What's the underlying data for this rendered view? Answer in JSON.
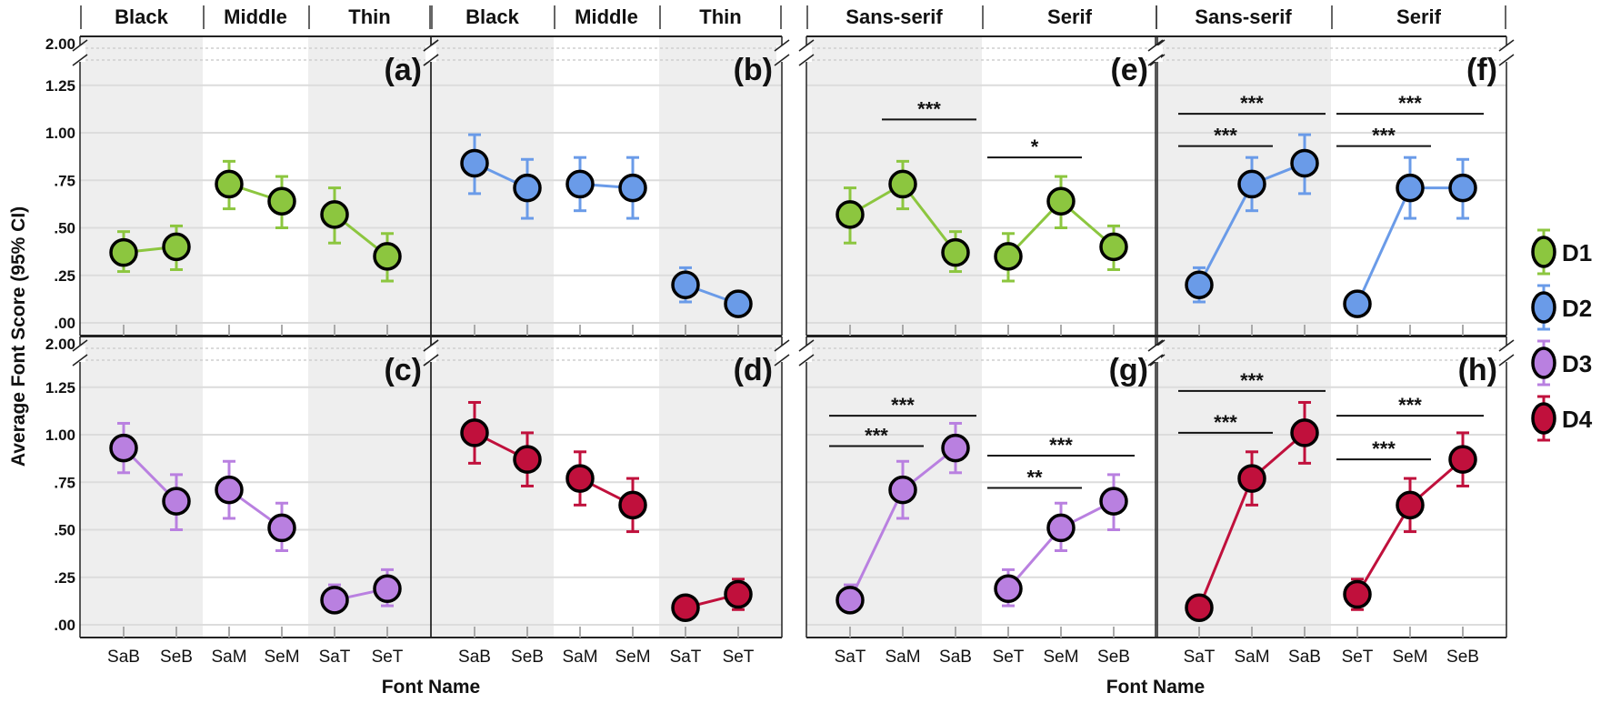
{
  "chart_data": {
    "type": "line",
    "ylabel": "Average Font Score (95% CI)",
    "xlabel": "Font Name",
    "ylim": [
      0,
      2.0
    ],
    "y_break": [
      1.25,
      2.0
    ],
    "yticks": [
      ".00",
      ".25",
      ".50",
      ".75",
      "1.00",
      "1.25",
      "2.00"
    ],
    "ytick_values": [
      0,
      0.25,
      0.5,
      0.75,
      1.0,
      1.25,
      2.0
    ],
    "grid": true,
    "legend_position": "right",
    "legend": [
      {
        "name": "D1",
        "color": "#8cc63f"
      },
      {
        "name": "D2",
        "color": "#6a9be8"
      },
      {
        "name": "D3",
        "color": "#b980e0"
      },
      {
        "name": "D4",
        "color": "#c0103c"
      }
    ],
    "panels": [
      {
        "label": "(a)",
        "series": "D1",
        "row": 0,
        "col": 0,
        "groups": [
          {
            "name": "Black",
            "n": 2,
            "shaded": true
          },
          {
            "name": "Middle",
            "n": 2,
            "shaded": false
          },
          {
            "name": "Thin",
            "n": 2,
            "shaded": true
          }
        ],
        "categories": [
          "SaB",
          "SeB",
          "SaM",
          "SeM",
          "SaT",
          "SeT"
        ],
        "values": [
          0.37,
          0.4,
          0.73,
          0.64,
          0.57,
          0.35
        ],
        "ci_low": [
          0.27,
          0.28,
          0.6,
          0.5,
          0.42,
          0.22
        ],
        "ci_high": [
          0.48,
          0.51,
          0.85,
          0.77,
          0.71,
          0.47
        ],
        "significance": []
      },
      {
        "label": "(b)",
        "series": "D2",
        "row": 0,
        "col": 1,
        "groups": [
          {
            "name": "Black",
            "n": 2,
            "shaded": true
          },
          {
            "name": "Middle",
            "n": 2,
            "shaded": false
          },
          {
            "name": "Thin",
            "n": 2,
            "shaded": true
          }
        ],
        "categories": [
          "SaB",
          "SeB",
          "SaM",
          "SeM",
          "SaT",
          "SeT"
        ],
        "values": [
          0.84,
          0.71,
          0.73,
          0.71,
          0.2,
          0.1
        ],
        "ci_low": [
          0.68,
          0.55,
          0.59,
          0.55,
          0.11,
          0.06
        ],
        "ci_high": [
          0.99,
          0.86,
          0.87,
          0.87,
          0.29,
          0.14
        ],
        "significance": []
      },
      {
        "label": "(c)",
        "series": "D3",
        "row": 1,
        "col": 0,
        "groups": [
          {
            "name": "Black",
            "n": 2,
            "shaded": true
          },
          {
            "name": "Middle",
            "n": 2,
            "shaded": false
          },
          {
            "name": "Thin",
            "n": 2,
            "shaded": true
          }
        ],
        "categories": [
          "SaB",
          "SeB",
          "SaM",
          "SeM",
          "SaT",
          "SeT"
        ],
        "values": [
          0.93,
          0.65,
          0.71,
          0.51,
          0.13,
          0.19
        ],
        "ci_low": [
          0.8,
          0.5,
          0.56,
          0.39,
          0.07,
          0.1
        ],
        "ci_high": [
          1.06,
          0.79,
          0.86,
          0.64,
          0.21,
          0.29
        ],
        "significance": []
      },
      {
        "label": "(d)",
        "series": "D4",
        "row": 1,
        "col": 1,
        "groups": [
          {
            "name": "Black",
            "n": 2,
            "shaded": true
          },
          {
            "name": "Middle",
            "n": 2,
            "shaded": false
          },
          {
            "name": "Thin",
            "n": 2,
            "shaded": true
          }
        ],
        "categories": [
          "SaB",
          "SeB",
          "SaM",
          "SeM",
          "SaT",
          "SeT"
        ],
        "values": [
          1.01,
          0.87,
          0.77,
          0.63,
          0.09,
          0.16
        ],
        "ci_low": [
          0.85,
          0.73,
          0.63,
          0.49,
          0.04,
          0.08
        ],
        "ci_high": [
          1.17,
          1.01,
          0.91,
          0.77,
          0.14,
          0.24
        ],
        "significance": []
      },
      {
        "label": "(e)",
        "series": "D1",
        "row": 0,
        "col": 2,
        "groups": [
          {
            "name": "Sans-serif",
            "n": 3,
            "shaded": true
          },
          {
            "name": "Serif",
            "n": 3,
            "shaded": false
          }
        ],
        "categories": [
          "SaT",
          "SaM",
          "SaB",
          "SeT",
          "SeM",
          "SeB"
        ],
        "values": [
          0.57,
          0.73,
          0.37,
          0.35,
          0.64,
          0.4
        ],
        "ci_low": [
          0.42,
          0.6,
          0.27,
          0.22,
          0.5,
          0.28
        ],
        "ci_high": [
          0.71,
          0.85,
          0.48,
          0.47,
          0.77,
          0.51
        ],
        "significance": [
          {
            "from": 1,
            "to": 2,
            "label": "***",
            "y": 1.07
          },
          {
            "from": 3,
            "to": 4,
            "label": "*",
            "y": 0.87
          }
        ]
      },
      {
        "label": "(f)",
        "series": "D2",
        "row": 0,
        "col": 3,
        "groups": [
          {
            "name": "Sans-serif",
            "n": 3,
            "shaded": true
          },
          {
            "name": "Serif",
            "n": 3,
            "shaded": false
          }
        ],
        "categories": [
          "SaT",
          "SaM",
          "SaB",
          "SeT",
          "SeM",
          "SeB"
        ],
        "values": [
          0.2,
          0.73,
          0.84,
          0.1,
          0.71,
          0.71
        ],
        "ci_low": [
          0.11,
          0.59,
          0.68,
          0.06,
          0.55,
          0.55
        ],
        "ci_high": [
          0.29,
          0.87,
          0.99,
          0.14,
          0.87,
          0.86
        ],
        "significance": [
          {
            "from": 0,
            "to": 2,
            "label": "***",
            "y": 1.1
          },
          {
            "from": 0,
            "to": 1,
            "label": "***",
            "y": 0.93
          },
          {
            "from": 3,
            "to": 5,
            "label": "***",
            "y": 1.1
          },
          {
            "from": 3,
            "to": 4,
            "label": "***",
            "y": 0.93
          }
        ]
      },
      {
        "label": "(g)",
        "series": "D3",
        "row": 1,
        "col": 2,
        "groups": [
          {
            "name": "Sans-serif",
            "n": 3,
            "shaded": true
          },
          {
            "name": "Serif",
            "n": 3,
            "shaded": false
          }
        ],
        "categories": [
          "SaT",
          "SaM",
          "SaB",
          "SeT",
          "SeM",
          "SeB"
        ],
        "values": [
          0.13,
          0.71,
          0.93,
          0.19,
          0.51,
          0.65
        ],
        "ci_low": [
          0.07,
          0.56,
          0.8,
          0.1,
          0.39,
          0.5
        ],
        "ci_high": [
          0.21,
          0.86,
          1.06,
          0.29,
          0.64,
          0.79
        ],
        "significance": [
          {
            "from": 0,
            "to": 2,
            "label": "***",
            "y": 1.1
          },
          {
            "from": 0,
            "to": 1,
            "label": "***",
            "y": 0.94
          },
          {
            "from": 3,
            "to": 5,
            "label": "***",
            "y": 0.89
          },
          {
            "from": 3,
            "to": 4,
            "label": "**",
            "y": 0.72
          }
        ]
      },
      {
        "label": "(h)",
        "series": "D4",
        "row": 1,
        "col": 3,
        "groups": [
          {
            "name": "Sans-serif",
            "n": 3,
            "shaded": true
          },
          {
            "name": "Serif",
            "n": 3,
            "shaded": false
          }
        ],
        "categories": [
          "SaT",
          "SaM",
          "SaB",
          "SeT",
          "SeM",
          "SeB"
        ],
        "values": [
          0.09,
          0.77,
          1.01,
          0.16,
          0.63,
          0.87
        ],
        "ci_low": [
          0.04,
          0.63,
          0.85,
          0.08,
          0.49,
          0.73
        ],
        "ci_high": [
          0.14,
          0.91,
          1.17,
          0.24,
          0.77,
          1.01
        ],
        "significance": [
          {
            "from": 0,
            "to": 2,
            "label": "***",
            "y": 1.23
          },
          {
            "from": 0,
            "to": 1,
            "label": "***",
            "y": 1.01
          },
          {
            "from": 3,
            "to": 5,
            "label": "***",
            "y": 1.1
          },
          {
            "from": 3,
            "to": 4,
            "label": "***",
            "y": 0.87
          }
        ]
      }
    ]
  }
}
